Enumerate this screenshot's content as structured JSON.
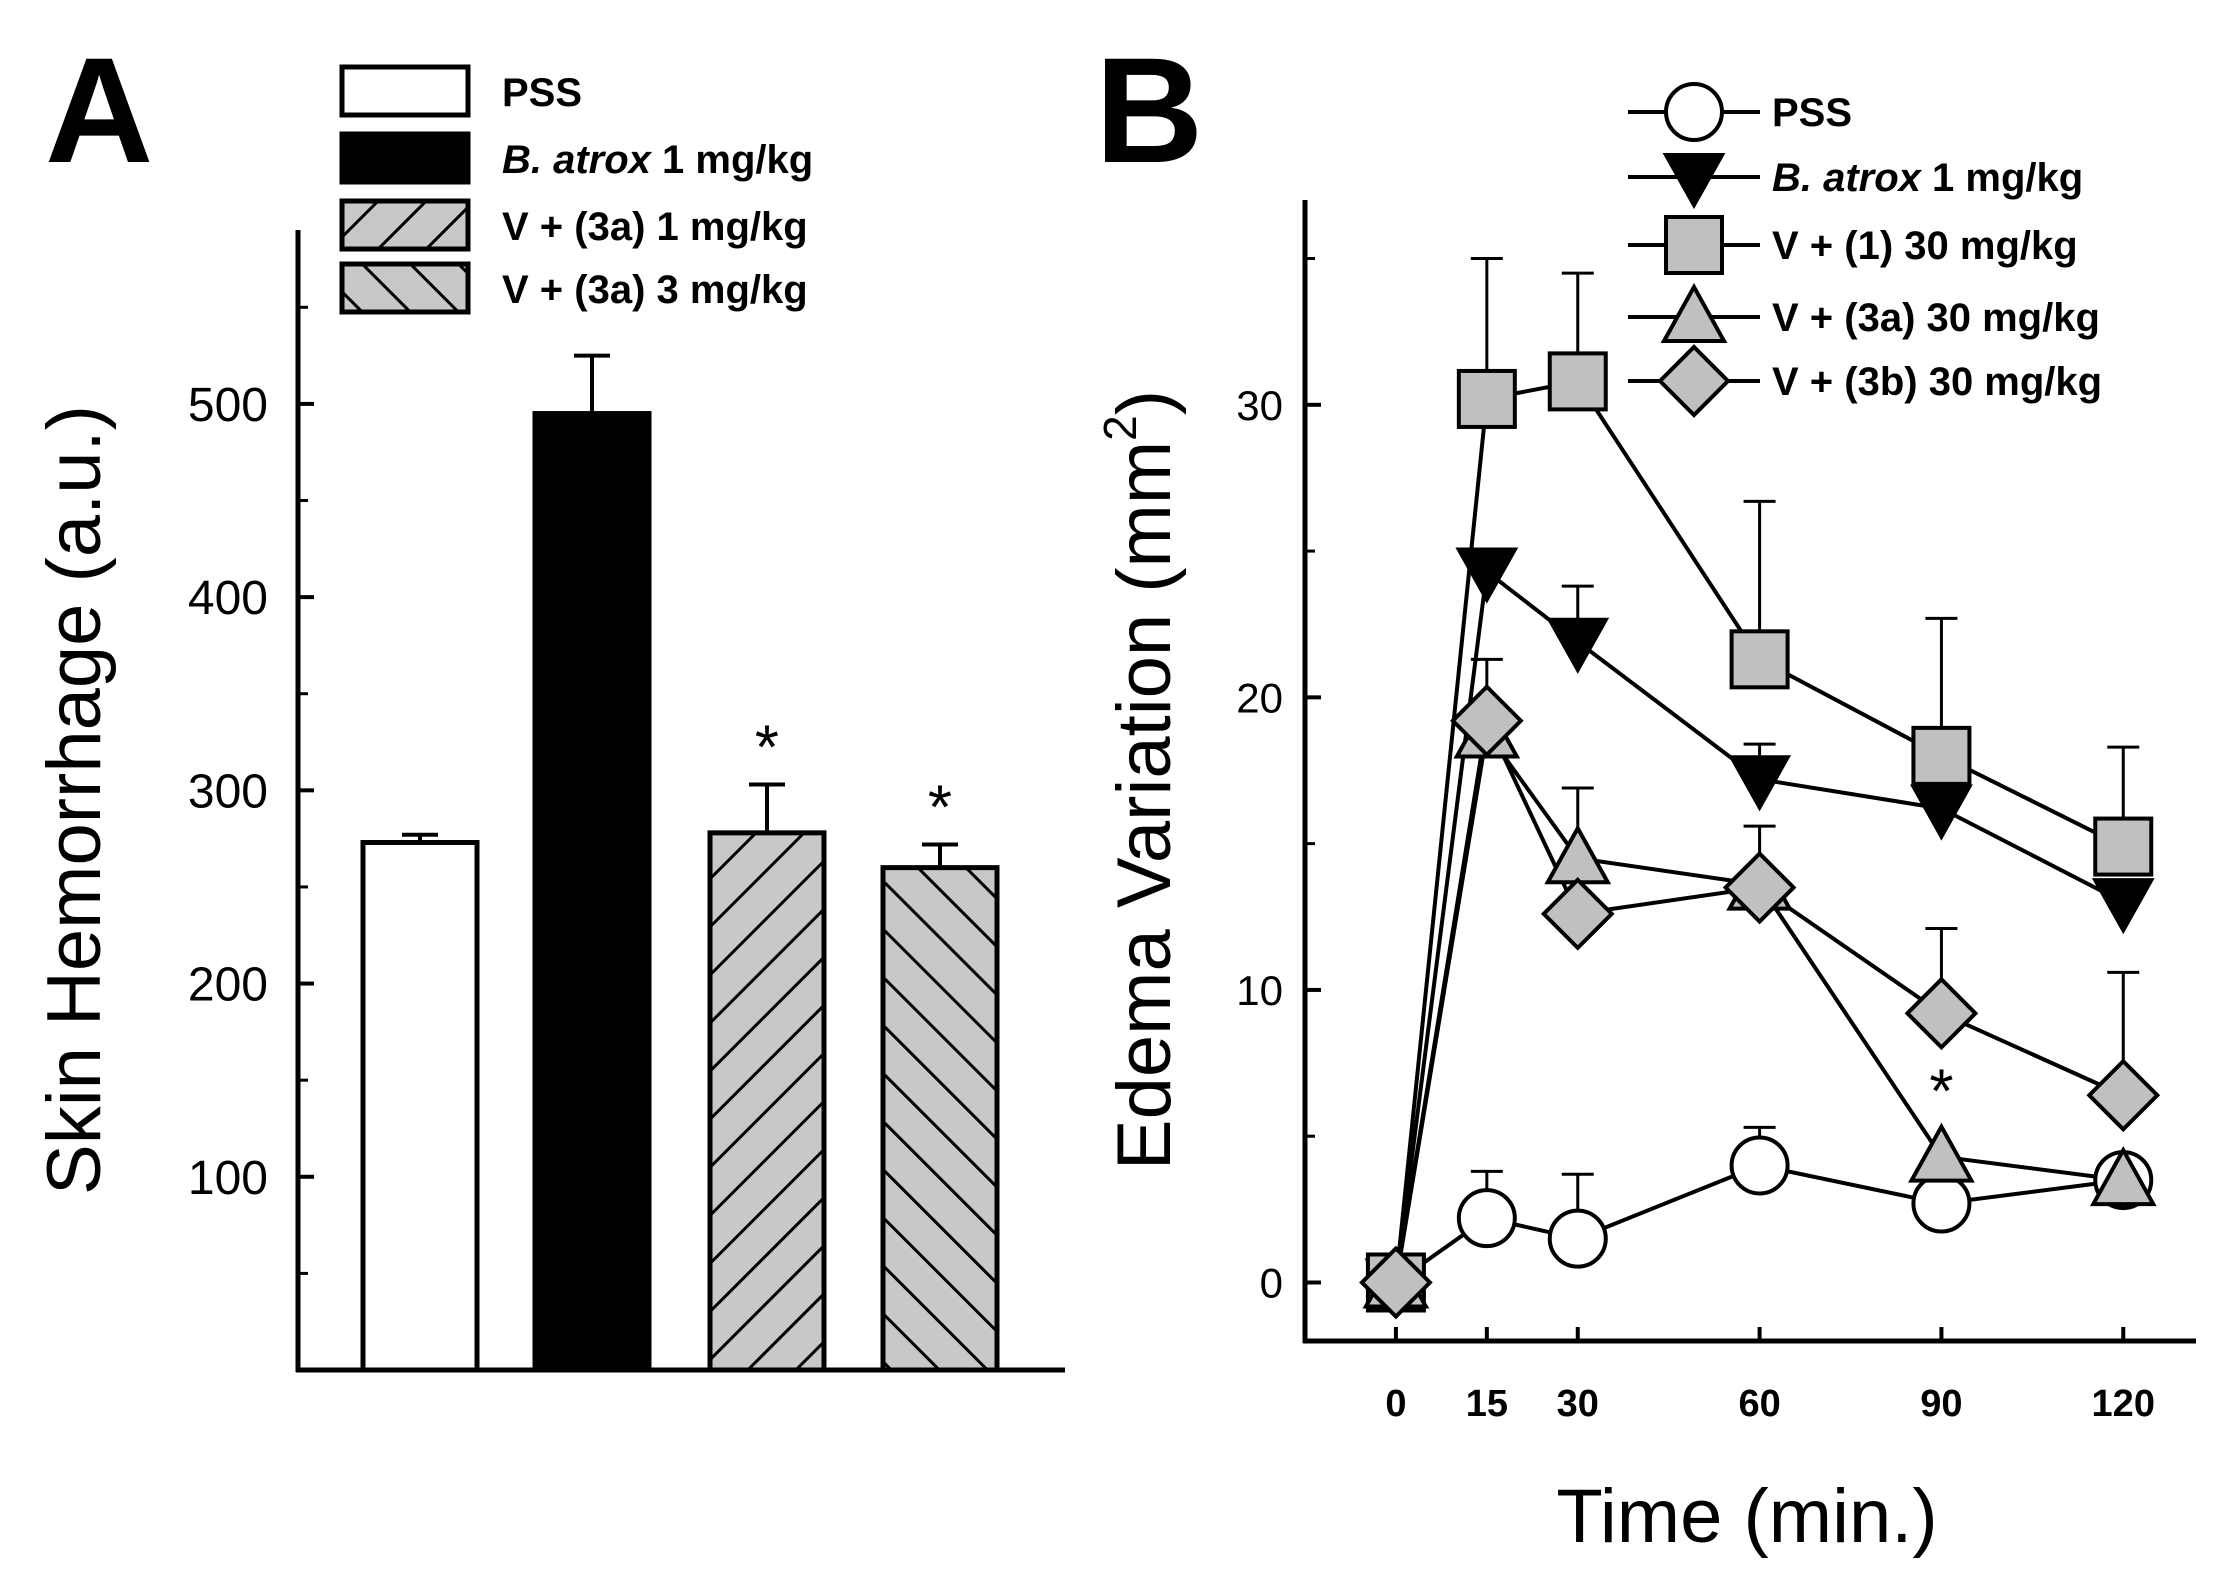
{
  "chart_data": [
    {
      "type": "bar",
      "panel": "A",
      "ylabel": "Skin Hemorrhage (a.u.)",
      "xlabel": "",
      "ylim": [
        0,
        590
      ],
      "yticks": [
        100,
        200,
        300,
        400,
        500
      ],
      "categories": [
        "PSS",
        "B. atrox 1 mg/kg",
        "V + (3a) 1 mg/kg",
        "V + (3a) 3 mg/kg"
      ],
      "values": [
        273,
        495,
        278,
        260
      ],
      "errors": [
        4,
        30,
        25,
        12
      ],
      "significant": [
        false,
        false,
        true,
        true
      ],
      "significance_marker": "*",
      "legend": [
        {
          "label": "PSS",
          "fill": "white",
          "color": "#ffffff"
        },
        {
          "label_italic": "B. atrox",
          "label_rest": " 1 mg/kg",
          "fill": "black",
          "color": "#000000"
        },
        {
          "label": "V + (3a) 1 mg/kg",
          "fill": "hatch-forward",
          "color": "#c8c8c8"
        },
        {
          "label": "V + (3a) 3 mg/kg",
          "fill": "hatch-back",
          "color": "#c8c8c8"
        }
      ],
      "legend_position": "top"
    },
    {
      "type": "line",
      "panel": "B",
      "xlabel": "Time (min.)",
      "ylabel_main": "Edema Variation (mm",
      "ylabel_sup": "2",
      "ylabel_close": ")",
      "x": [
        0,
        15,
        30,
        60,
        90,
        120
      ],
      "xticks": [
        0,
        15,
        30,
        60,
        90,
        120
      ],
      "xlim": [
        -15,
        132
      ],
      "ylim": [
        -2,
        37
      ],
      "yticks": [
        0,
        10,
        20,
        30
      ],
      "yminor": [
        5,
        15,
        25,
        35
      ],
      "series": [
        {
          "name": "PSS",
          "marker": "circle",
          "fill": "#ffffff",
          "values": [
            0,
            2.2,
            1.5,
            4.0,
            2.7,
            3.5
          ],
          "errors": [
            0,
            1.6,
            2.2,
            1.3,
            0,
            0
          ]
        },
        {
          "name_italic": "B. atrox",
          "name_rest": " 1 mg/kg",
          "marker": "triangle-down",
          "fill": "#000000",
          "values": [
            0,
            24.3,
            21.9,
            17.2,
            16.2,
            13.0
          ],
          "errors": [
            0,
            0,
            1.9,
            1.2,
            0,
            0
          ]
        },
        {
          "name": "V + (1) 30 mg/kg",
          "marker": "square",
          "fill": "#c0c0c0",
          "values": [
            0,
            30.2,
            30.8,
            21.3,
            18.0,
            14.9
          ],
          "errors": [
            0,
            4.8,
            3.7,
            5.4,
            4.7,
            3.4
          ]
        },
        {
          "name": "V + (3a) 30 mg/kg",
          "marker": "triangle-up",
          "fill": "#c0c0c0",
          "values": [
            0,
            18.8,
            14.5,
            13.6,
            4.3,
            3.5
          ],
          "errors": [
            0,
            2.5,
            2.4,
            2.0,
            0,
            0
          ]
        },
        {
          "name": "V + (3b) 30 mg/kg",
          "marker": "diamond",
          "fill": "#c0c0c0",
          "values": [
            0,
            19.2,
            12.6,
            13.5,
            9.2,
            6.4
          ],
          "errors": [
            0,
            0,
            0,
            0,
            2.9,
            4.2
          ]
        }
      ],
      "annotations": [
        {
          "x": 90,
          "y": 6.5,
          "text": "*"
        }
      ],
      "legend_position": "top-right"
    }
  ]
}
